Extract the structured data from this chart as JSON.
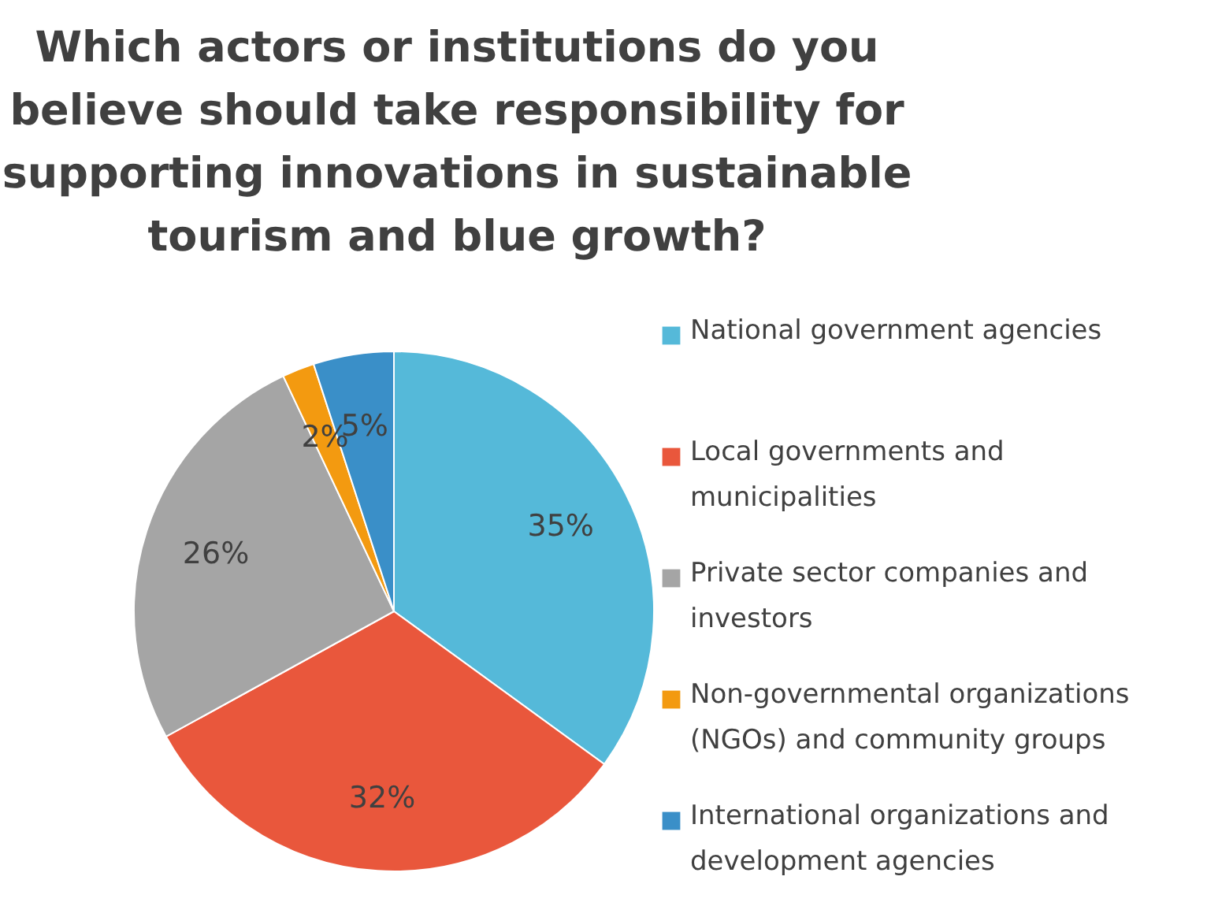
{
  "chart_data": {
    "type": "pie",
    "title": "Which actors or institutions do you believe should take responsibility for supporting innovations in sustainable tourism and blue growth?",
    "categories": [
      "National government agencies",
      "Local governments and municipalities",
      "Private sector companies and investors",
      "Non-governmental organizations (NGOs) and community groups",
      "International organizations and development agencies"
    ],
    "values": [
      35,
      32,
      26,
      2,
      5
    ],
    "colors": [
      "#55b9d9",
      "#e9573c",
      "#a5a5a5",
      "#f39a10",
      "#3a8fc8"
    ],
    "value_labels": [
      "35%",
      "32%",
      "26%",
      "2%",
      "5%"
    ],
    "legend": "right"
  }
}
